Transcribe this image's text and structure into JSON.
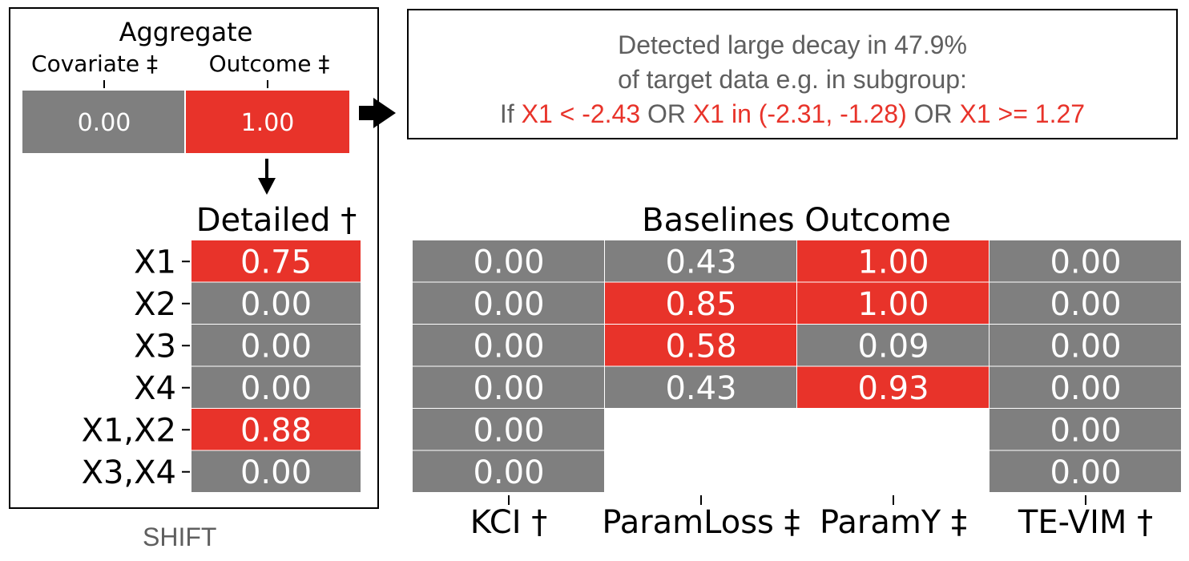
{
  "colors": {
    "high": "#e8332a",
    "low": "#7f7f7f",
    "text_muted": "#5f5f5f"
  },
  "aggregate": {
    "title": "Aggregate",
    "columns": [
      "Covariate ‡",
      "Outcome ‡"
    ],
    "values": [
      "0.00",
      "1.00"
    ]
  },
  "detailed": {
    "title": "Detailed †",
    "rows": [
      {
        "label": "X1",
        "value": "0.75"
      },
      {
        "label": "X2",
        "value": "0.00"
      },
      {
        "label": "X3",
        "value": "0.00"
      },
      {
        "label": "X4",
        "value": "0.00"
      },
      {
        "label": "X1,X2",
        "value": "0.88"
      },
      {
        "label": "X3,X4",
        "value": "0.00"
      }
    ]
  },
  "callout": {
    "line1": "Detected large decay in 47.9%",
    "line2": "of target data e.g. in subgroup:",
    "line3_parts": [
      {
        "text": "If ",
        "highlight": false
      },
      {
        "text": "X1 < -2.43",
        "highlight": true
      },
      {
        "text": " OR ",
        "highlight": false
      },
      {
        "text": "X1 in (-2.31, -1.28)",
        "highlight": true
      },
      {
        "text": " OR ",
        "highlight": false
      },
      {
        "text": "X1 >= 1.27",
        "highlight": true
      }
    ]
  },
  "baselines": {
    "title": "Baselines Outcome",
    "columns": [
      "KCI †",
      "ParamLoss ‡",
      "ParamY ‡",
      "TE-VIM †"
    ],
    "cells": [
      [
        "0.00",
        "0.43",
        "1.00",
        "0.00"
      ],
      [
        "0.00",
        "0.85",
        "1.00",
        "0.00"
      ],
      [
        "0.00",
        "0.58",
        "0.09",
        "0.00"
      ],
      [
        "0.00",
        "0.43",
        "0.93",
        "0.00"
      ],
      [
        "0.00",
        null,
        null,
        "0.00"
      ],
      [
        "0.00",
        null,
        null,
        "0.00"
      ]
    ]
  },
  "chart_data": [
    {
      "type": "heatmap",
      "title": "Aggregate",
      "categories": [
        "Covariate ‡",
        "Outcome ‡"
      ],
      "values": [
        0.0,
        1.0
      ]
    },
    {
      "type": "heatmap",
      "title": "Detailed †",
      "categories": [
        "X1",
        "X2",
        "X3",
        "X4",
        "X1,X2",
        "X3,X4"
      ],
      "values": [
        0.75,
        0.0,
        0.0,
        0.0,
        0.88,
        0.0
      ]
    },
    {
      "type": "heatmap",
      "title": "Baselines Outcome",
      "columns": [
        "KCI †",
        "ParamLoss ‡",
        "ParamY ‡",
        "TE-VIM †"
      ],
      "values": [
        [
          0.0,
          0.43,
          1.0,
          0.0
        ],
        [
          0.0,
          0.85,
          1.0,
          0.0
        ],
        [
          0.0,
          0.58,
          0.09,
          0.0
        ],
        [
          0.0,
          0.43,
          0.93,
          0.0
        ],
        [
          0.0,
          null,
          null,
          0.0
        ],
        [
          0.0,
          null,
          null,
          0.0
        ]
      ]
    }
  ],
  "caption": "SHIFT"
}
